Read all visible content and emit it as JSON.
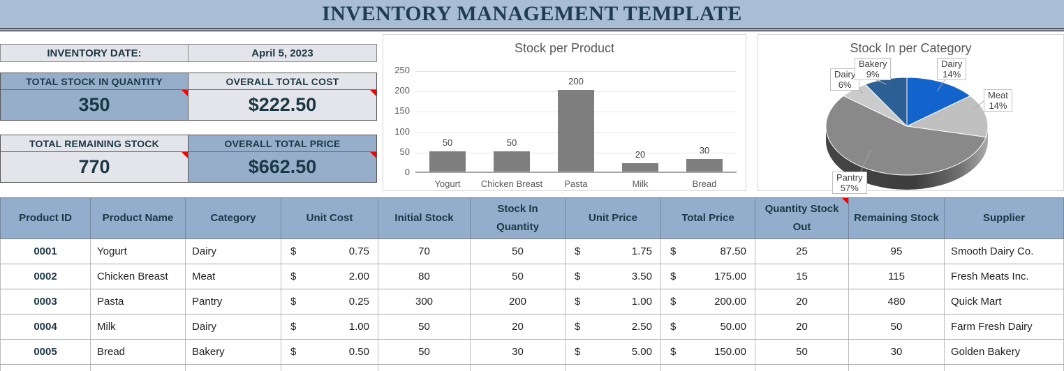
{
  "title": "INVENTORY MANAGEMENT TEMPLATE",
  "summary": {
    "date_label": "INVENTORY DATE:",
    "date_value": "April 5, 2023",
    "cards": [
      {
        "label": "TOTAL STOCK IN QUANTITY",
        "value": "350",
        "has_note": true
      },
      {
        "label": "OVERALL TOTAL COST",
        "value": "$222.50",
        "has_note": true
      },
      {
        "label": "TOTAL REMAINING STOCK",
        "value": "770",
        "has_note": true
      },
      {
        "label": "OVERALL TOTAL PRICE",
        "value": "$662.50",
        "has_note": true
      }
    ]
  },
  "chart_data": [
    {
      "type": "bar",
      "title": "Stock per Product",
      "categories": [
        "Yogurt",
        "Chicken Breast",
        "Pasta",
        "Milk",
        "Bread"
      ],
      "values": [
        50,
        50,
        200,
        20,
        30
      ],
      "xlabel": "",
      "ylabel": "",
      "ylim": [
        0,
        250
      ],
      "yticks": [
        0,
        50,
        100,
        150,
        200,
        250
      ],
      "grid": true,
      "data_labels": true,
      "legend_position": "none",
      "bar_color": "#7f7f7f"
    },
    {
      "type": "pie",
      "title": "Stock In per Category",
      "labels": [
        "Dairy",
        "Meat",
        "Pantry",
        "Dairy",
        "Bakery"
      ],
      "values": [
        50,
        50,
        200,
        20,
        30
      ],
      "percent_labels": [
        "14%",
        "14%",
        "57%",
        "6%",
        "9%"
      ],
      "colors": [
        "#1263cc",
        "#c0c0c0",
        "#898989",
        "#cbcbcb",
        "#2c5f94"
      ],
      "style": "3d",
      "legend_position": "none"
    }
  ],
  "table": {
    "currency_symbol": "$",
    "columns": [
      {
        "label": "Product ID",
        "type": "id"
      },
      {
        "label": "Product Name",
        "type": "text"
      },
      {
        "label": "Category",
        "type": "text"
      },
      {
        "label": "Unit Cost",
        "type": "money"
      },
      {
        "label": "Initial Stock",
        "type": "num"
      },
      {
        "label": "Stock In Quantity",
        "type": "num"
      },
      {
        "label": "Unit Price",
        "type": "money"
      },
      {
        "label": "Total Price",
        "type": "money"
      },
      {
        "label": "Quantity Stock Out",
        "type": "num",
        "has_note": true
      },
      {
        "label": "Remaining Stock",
        "type": "num"
      },
      {
        "label": "Supplier",
        "type": "text"
      }
    ],
    "rows": [
      [
        "0001",
        "Yogurt",
        "Dairy",
        "0.75",
        "70",
        "50",
        "1.75",
        "87.50",
        "25",
        "95",
        "Smooth Dairy Co."
      ],
      [
        "0002",
        "Chicken Breast",
        "Meat",
        "2.00",
        "80",
        "50",
        "3.50",
        "175.00",
        "15",
        "115",
        "Fresh Meats Inc."
      ],
      [
        "0003",
        "Pasta",
        "Pantry",
        "0.25",
        "300",
        "200",
        "1.00",
        "200.00",
        "20",
        "480",
        "Quick Mart"
      ],
      [
        "0004",
        "Milk",
        "Dairy",
        "1.00",
        "50",
        "20",
        "2.50",
        "50.00",
        "20",
        "50",
        "Farm Fresh Dairy"
      ],
      [
        "0005",
        "Bread",
        "Bakery",
        "0.50",
        "50",
        "30",
        "5.00",
        "150.00",
        "50",
        "30",
        "Golden Bakery"
      ]
    ]
  },
  "colors": {
    "title_bar_bg": "#a9bed6",
    "navy_text": "#1b3744",
    "summary_blue": "#97aecb",
    "summary_gray": "#e4e5ea",
    "table_header_blue": "#93aecd",
    "note_red": "#fb0000",
    "bar_gray": "#7f7f7f"
  }
}
